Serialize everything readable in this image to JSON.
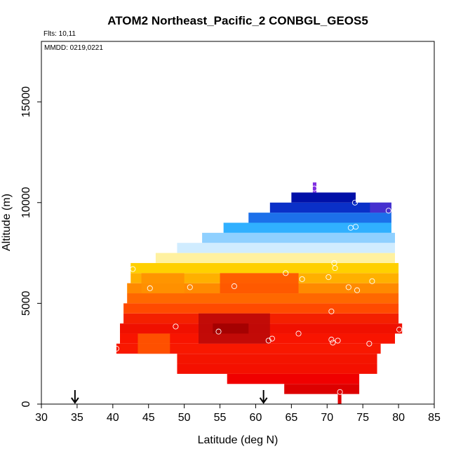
{
  "chart_data": {
    "type": "heatmap",
    "title": "ATOM2 Northeast_Pacific_2 CONBGL_GEOS5",
    "notes": [
      "Flts: 10,11",
      "MMDD: 0219,0221"
    ],
    "xlabel": "Latitude (deg N)",
    "ylabel": "Altitude (m)",
    "xlim": [
      30,
      85
    ],
    "ylim": [
      0,
      18000
    ],
    "xticks": [
      "30",
      "35",
      "40",
      "45",
      "50",
      "55",
      "60",
      "65",
      "70",
      "75",
      "80",
      "85"
    ],
    "yticks": [
      "0",
      "5000",
      "10000",
      "15000"
    ],
    "grid": false,
    "legend": "none",
    "colors": {
      "dark_red": "#b80000",
      "red": "#f01000",
      "orange_red": "#ff5000",
      "orange": "#ff8c00",
      "yellow": "#ffd400",
      "pale_yellow": "#fff7a0",
      "pale_blue": "#cce8ff",
      "sky_blue": "#3cb4ff",
      "blue": "#1060e0",
      "dark_blue": "#0010b0",
      "purple": "#8030e0"
    },
    "bands": [
      {
        "y0": 0,
        "y1": 500,
        "x0": 71.5,
        "x1": 72.0,
        "color": "#e00000"
      },
      {
        "y0": 500,
        "y1": 1000,
        "x0": 64.0,
        "x1": 74.5,
        "color": "#dd0000"
      },
      {
        "y0": 1000,
        "y1": 1500,
        "x0": 56.0,
        "x1": 74.5,
        "color": "#f00000"
      },
      {
        "y0": 1500,
        "y1": 2000,
        "x0": 49.0,
        "x1": 77.0,
        "color": "#f41000"
      },
      {
        "y0": 2000,
        "y1": 2500,
        "x0": 49.0,
        "x1": 77.0,
        "color": "#f41400"
      },
      {
        "y0": 2500,
        "y1": 3000,
        "x0": 40.5,
        "x1": 77.5,
        "color": "#f81800"
      },
      {
        "y0": 3000,
        "y1": 3500,
        "x0": 41.0,
        "x1": 79.5,
        "color": "#f81400"
      },
      {
        "y0": 3500,
        "y1": 4000,
        "x0": 41.0,
        "x1": 80.5,
        "color": "#f01000"
      },
      {
        "y0": 4000,
        "y1": 4500,
        "x0": 41.5,
        "x1": 80.0,
        "color": "#f42000"
      },
      {
        "y0": 4500,
        "y1": 5000,
        "x0": 41.5,
        "x1": 80.0,
        "color": "#ff4a00"
      },
      {
        "y0": 5000,
        "y1": 5500,
        "x0": 42.0,
        "x1": 80.0,
        "color": "#ff6800"
      },
      {
        "y0": 5500,
        "y1": 6000,
        "x0": 42.0,
        "x1": 80.0,
        "color": "#ff8a00"
      },
      {
        "y0": 6000,
        "y1": 6500,
        "x0": 42.5,
        "x1": 80.0,
        "color": "#ffb000"
      },
      {
        "y0": 6500,
        "y1": 7000,
        "x0": 42.5,
        "x1": 80.0,
        "color": "#ffd000"
      },
      {
        "y0": 7000,
        "y1": 7500,
        "x0": 46.0,
        "x1": 79.5,
        "color": "#fff1a0"
      },
      {
        "y0": 7500,
        "y1": 8000,
        "x0": 49.0,
        "x1": 79.5,
        "color": "#d0ecff"
      },
      {
        "y0": 8000,
        "y1": 8500,
        "x0": 52.5,
        "x1": 79.5,
        "color": "#8fd0ff"
      },
      {
        "y0": 8500,
        "y1": 9000,
        "x0": 55.5,
        "x1": 79.0,
        "color": "#30b0ff"
      },
      {
        "y0": 9000,
        "y1": 9500,
        "x0": 59.0,
        "x1": 79.0,
        "color": "#1c70ea"
      },
      {
        "y0": 9500,
        "y1": 10000,
        "x0": 62.0,
        "x1": 79.0,
        "color": "#0a30c8"
      },
      {
        "y0": 10000,
        "y1": 10500,
        "x0": 65.0,
        "x1": 74.0,
        "color": "#0010a8"
      },
      {
        "y0": 10500,
        "y1": 11000,
        "x0": 68.0,
        "x1": 68.5,
        "color": "#8030e0"
      }
    ],
    "hot_spots": [
      {
        "y0": 3000,
        "y1": 4500,
        "x0": 52.0,
        "x1": 62.0,
        "color": "#b80808"
      },
      {
        "y0": 3500,
        "y1": 4000,
        "x0": 54.0,
        "x1": 59.0,
        "color": "#a00000"
      },
      {
        "y0": 2500,
        "y1": 3500,
        "x0": 43.5,
        "x1": 48.0,
        "color": "#ff5a00"
      },
      {
        "y0": 5500,
        "y1": 6500,
        "x0": 44.0,
        "x1": 50.0,
        "color": "#ff9000"
      },
      {
        "y0": 5500,
        "y1": 6500,
        "x0": 55.0,
        "x1": 66.0,
        "color": "#ff5000"
      },
      {
        "y0": 9500,
        "y1": 10000,
        "x0": 76.0,
        "x1": 79.0,
        "color": "#5030d0"
      }
    ],
    "points": [
      {
        "x": 40.5,
        "y": 2750
      },
      {
        "x": 42.8,
        "y": 6700
      },
      {
        "x": 45.2,
        "y": 5750
      },
      {
        "x": 48.8,
        "y": 3850
      },
      {
        "x": 50.8,
        "y": 5800
      },
      {
        "x": 54.8,
        "y": 3600
      },
      {
        "x": 57.0,
        "y": 5850
      },
      {
        "x": 61.8,
        "y": 3150
      },
      {
        "x": 62.3,
        "y": 3250
      },
      {
        "x": 64.2,
        "y": 6500
      },
      {
        "x": 66.0,
        "y": 3500
      },
      {
        "x": 66.5,
        "y": 6200
      },
      {
        "x": 68.2,
        "y": 10700
      },
      {
        "x": 70.2,
        "y": 6300
      },
      {
        "x": 70.6,
        "y": 4600
      },
      {
        "x": 70.6,
        "y": 3200
      },
      {
        "x": 70.8,
        "y": 3050
      },
      {
        "x": 71.0,
        "y": 7000
      },
      {
        "x": 71.1,
        "y": 6750
      },
      {
        "x": 71.5,
        "y": 3150
      },
      {
        "x": 73.0,
        "y": 5800
      },
      {
        "x": 73.3,
        "y": 8750
      },
      {
        "x": 73.9,
        "y": 10000
      },
      {
        "x": 74.0,
        "y": 8800
      },
      {
        "x": 74.2,
        "y": 5650
      },
      {
        "x": 75.9,
        "y": 3000
      },
      {
        "x": 76.3,
        "y": 6100
      },
      {
        "x": 78.6,
        "y": 9600
      },
      {
        "x": 80.1,
        "y": 3700
      },
      {
        "x": 71.8,
        "y": 600
      }
    ],
    "arrows_x": [
      34.7,
      61.1
    ]
  }
}
